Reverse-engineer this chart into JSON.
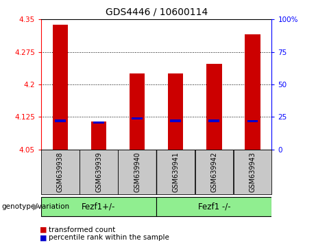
{
  "title": "GDS4446 / 10600114",
  "samples": [
    "GSM639938",
    "GSM639939",
    "GSM639940",
    "GSM639941",
    "GSM639942",
    "GSM639943"
  ],
  "red_values": [
    4.338,
    4.114,
    4.226,
    4.226,
    4.248,
    4.315
  ],
  "blue_values": [
    4.116,
    4.112,
    4.122,
    4.116,
    4.116,
    4.115
  ],
  "y_min": 4.05,
  "y_max": 4.35,
  "y_ticks_left": [
    4.05,
    4.125,
    4.2,
    4.275,
    4.35
  ],
  "y_ticks_right": [
    0,
    25,
    50,
    75,
    100
  ],
  "bar_color_red": "#cc0000",
  "bar_color_blue": "#0000cc",
  "bar_width": 0.4,
  "bg_color_label": "#c8c8c8",
  "group1_label": "Fezf1+/-",
  "group2_label": "Fezf1 -/-",
  "group_color": "#90ee90",
  "legend_red_label": "transformed count",
  "legend_blue_label": "percentile rank within the sample",
  "genotype_label": "genotype/variation"
}
